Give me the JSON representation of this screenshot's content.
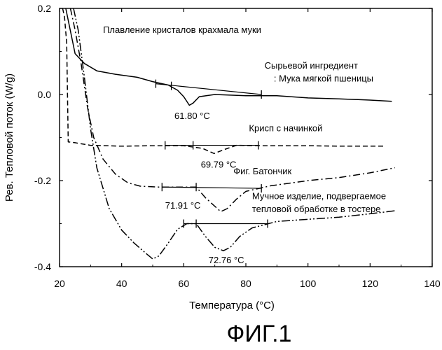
{
  "figure_label": "ФИГ.1",
  "chart_data": {
    "type": "line",
    "title": "",
    "xlabel": "Температура (°C)",
    "ylabel": "Рев. Тепловой поток (W/g)",
    "xlim": [
      20,
      140
    ],
    "ylim": [
      -0.4,
      0.2
    ],
    "xticks": [
      {
        "value": 20,
        "label": "20"
      },
      {
        "value": 40,
        "label": "40"
      },
      {
        "value": 60,
        "label": "60"
      },
      {
        "value": 80,
        "label": "80"
      },
      {
        "value": 100,
        "label": "100"
      },
      {
        "value": 120,
        "label": "120"
      },
      {
        "value": 140,
        "label": "140"
      }
    ],
    "yticks": [
      {
        "value": 0.2,
        "label": "0.2"
      },
      {
        "value": 0.0,
        "label": "0.0"
      },
      {
        "value": -0.2,
        "label": "-0.2"
      },
      {
        "value": -0.4,
        "label": "-0.4"
      }
    ],
    "series": [
      {
        "key": "flour",
        "dash": "",
        "points": [
          [
            22.0,
            0.2
          ],
          [
            25,
            0.095
          ],
          [
            28,
            0.072
          ],
          [
            32,
            0.055
          ],
          [
            38,
            0.047
          ],
          [
            45,
            0.04
          ],
          [
            50,
            0.03
          ],
          [
            55,
            0.022
          ],
          [
            58,
            0.01
          ],
          [
            60,
            -0.005
          ],
          [
            61.8,
            -0.025
          ],
          [
            63,
            -0.02
          ],
          [
            65,
            -0.005
          ],
          [
            70,
            0.0
          ],
          [
            80,
            -0.003
          ],
          [
            90,
            -0.003
          ],
          [
            100,
            -0.008
          ],
          [
            110,
            -0.01
          ],
          [
            120,
            -0.013
          ],
          [
            127,
            -0.016
          ]
        ]
      },
      {
        "key": "crisp",
        "dash": "7,4",
        "points": [
          [
            21.0,
            0.2
          ],
          [
            21.6,
            0.18
          ],
          [
            22.3,
            0.12
          ],
          [
            22.8,
            -0.11
          ],
          [
            25,
            -0.112
          ],
          [
            30,
            -0.118
          ],
          [
            40,
            -0.12
          ],
          [
            50,
            -0.119
          ],
          [
            60,
            -0.119
          ],
          [
            66,
            -0.125
          ],
          [
            69.79,
            -0.137
          ],
          [
            73,
            -0.128
          ],
          [
            77,
            -0.118
          ],
          [
            85,
            -0.119
          ],
          [
            100,
            -0.119
          ],
          [
            110,
            -0.12
          ],
          [
            125,
            -0.12
          ]
        ]
      },
      {
        "key": "bar",
        "dash": "10,4,2,4",
        "points": [
          [
            23.5,
            0.2
          ],
          [
            25,
            0.15
          ],
          [
            27,
            0.07
          ],
          [
            29,
            -0.03
          ],
          [
            31,
            -0.1
          ],
          [
            34,
            -0.15
          ],
          [
            38,
            -0.185
          ],
          [
            42,
            -0.205
          ],
          [
            46,
            -0.213
          ],
          [
            52,
            -0.215
          ],
          [
            60,
            -0.215
          ],
          [
            64,
            -0.215
          ],
          [
            67,
            -0.24
          ],
          [
            71.91,
            -0.272
          ],
          [
            74,
            -0.265
          ],
          [
            77,
            -0.243
          ],
          [
            80,
            -0.225
          ],
          [
            88,
            -0.212
          ],
          [
            100,
            -0.2
          ],
          [
            110,
            -0.193
          ],
          [
            120,
            -0.182
          ],
          [
            128,
            -0.17
          ]
        ]
      },
      {
        "key": "toaster",
        "dash": "12,3,2,3,2,3",
        "points": [
          [
            24.5,
            0.2
          ],
          [
            26,
            0.15
          ],
          [
            28,
            0.04
          ],
          [
            30,
            -0.08
          ],
          [
            32,
            -0.17
          ],
          [
            36,
            -0.265
          ],
          [
            40,
            -0.315
          ],
          [
            44,
            -0.345
          ],
          [
            48,
            -0.37
          ],
          [
            50,
            -0.382
          ],
          [
            52,
            -0.375
          ],
          [
            55,
            -0.345
          ],
          [
            58,
            -0.313
          ],
          [
            61,
            -0.3
          ],
          [
            64,
            -0.3
          ],
          [
            67,
            -0.33
          ],
          [
            70,
            -0.355
          ],
          [
            72.76,
            -0.363
          ],
          [
            75,
            -0.355
          ],
          [
            78,
            -0.33
          ],
          [
            82,
            -0.31
          ],
          [
            90,
            -0.295
          ],
          [
            100,
            -0.29
          ],
          [
            110,
            -0.285
          ],
          [
            120,
            -0.277
          ],
          [
            128,
            -0.27
          ]
        ]
      }
    ],
    "baselines": [
      {
        "from": [
          51,
          0.025
        ],
        "to": [
          85,
          0.0
        ]
      },
      {
        "from": [
          54,
          -0.118
        ],
        "to": [
          84,
          -0.118
        ]
      },
      {
        "from": [
          53,
          -0.215
        ],
        "to": [
          85,
          -0.218
        ]
      },
      {
        "from": [
          60,
          -0.3
        ],
        "to": [
          87,
          -0.3
        ]
      }
    ],
    "tick_marks": [
      [
        51,
        0.025
      ],
      [
        56,
        0.02
      ],
      [
        85,
        0.0
      ],
      [
        54,
        -0.118
      ],
      [
        63,
        -0.118
      ],
      [
        84,
        -0.118
      ],
      [
        53,
        -0.215
      ],
      [
        64,
        -0.215
      ],
      [
        85,
        -0.218
      ],
      [
        60,
        -0.3
      ],
      [
        64,
        -0.3
      ],
      [
        87,
        -0.3
      ]
    ],
    "annotations": [
      {
        "key": "melting",
        "text": "Плавление кристалов крахмала муки",
        "x": 34,
        "y": 0.143
      },
      {
        "key": "flour_1",
        "text": "Сырьевой ингредиент",
        "x": 86,
        "y": 0.06
      },
      {
        "key": "flour_2",
        "text": ": Мука мягкой пшеницы",
        "x": 89,
        "y": 0.03
      },
      {
        "key": "flour_peak",
        "text": "61.80 °C",
        "x": 57,
        "y": -0.057
      },
      {
        "key": "crisp_name",
        "text": "Крисп с начинкой",
        "x": 81,
        "y": -0.085
      },
      {
        "key": "crisp_peak",
        "text": "69.79 °C",
        "x": 65.5,
        "y": -0.17
      },
      {
        "key": "bar_name",
        "text": "Фиг. Батончик",
        "x": 76,
        "y": -0.185
      },
      {
        "key": "bar_peak",
        "text": "71.91 °C",
        "x": 54,
        "y": -0.265
      },
      {
        "key": "toaster_1",
        "text": "Мучное изделие, подвергаемое",
        "x": 82,
        "y": -0.243
      },
      {
        "key": "toaster_2",
        "text": "тепловой обработке в тостере",
        "x": 82,
        "y": -0.273
      },
      {
        "key": "toaster_peak",
        "text": "72.76 °C",
        "x": 68,
        "y": -0.392
      }
    ],
    "grid": false,
    "legend": "none"
  }
}
